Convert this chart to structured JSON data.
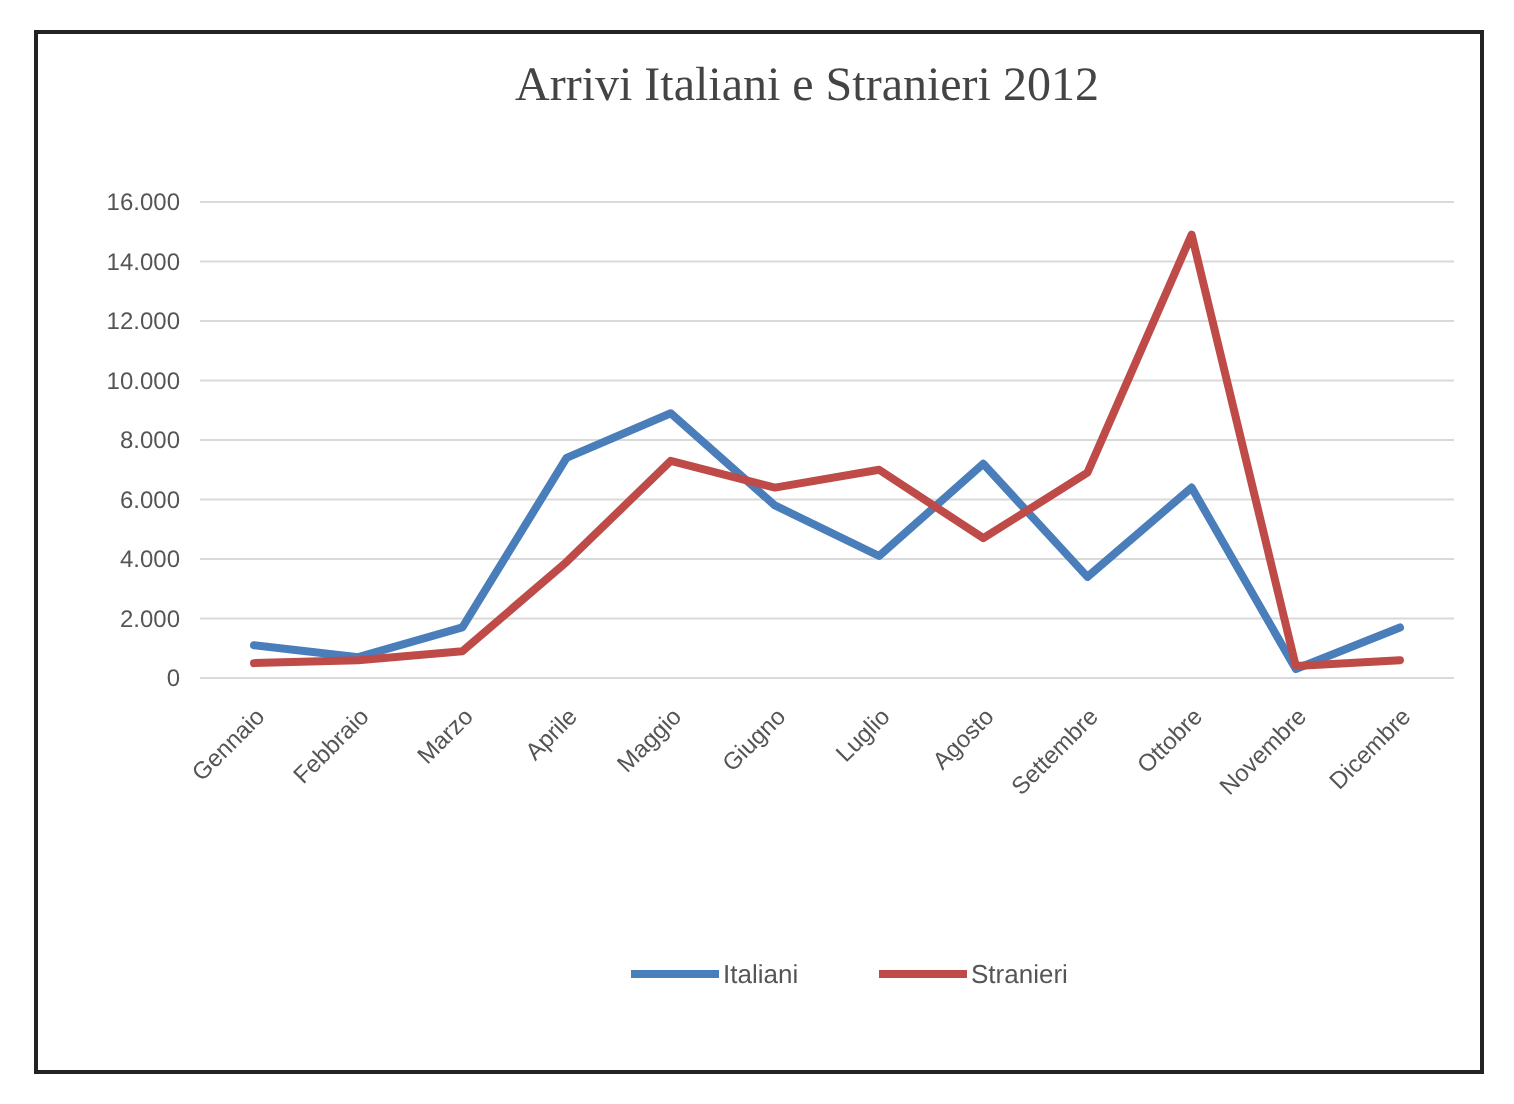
{
  "chart_data": {
    "type": "line",
    "title": "Arrivi Italiani e Stranieri 2012",
    "categories": [
      "Gennaio",
      "Febbraio",
      "Marzo",
      "Aprile",
      "Maggio",
      "Giugno",
      "Luglio",
      "Agosto",
      "Settembre",
      "Ottobre",
      "Novembre",
      "Dicembre"
    ],
    "series": [
      {
        "name": "Italiani",
        "color": "#4a7ebb",
        "values": [
          1100,
          700,
          1700,
          7400,
          8900,
          5800,
          4100,
          7200,
          3400,
          6400,
          300,
          1700
        ]
      },
      {
        "name": "Stranieri",
        "color": "#be4b48",
        "values": [
          500,
          600,
          900,
          3900,
          7300,
          6400,
          7000,
          4700,
          6900,
          14900,
          400,
          600
        ]
      }
    ],
    "ylim": [
      0,
      16000
    ],
    "yticks": [
      {
        "value": 0,
        "label": "0"
      },
      {
        "value": 2000,
        "label": "2.000"
      },
      {
        "value": 4000,
        "label": "4.000"
      },
      {
        "value": 6000,
        "label": "6.000"
      },
      {
        "value": 8000,
        "label": "8.000"
      },
      {
        "value": 10000,
        "label": "10.000"
      },
      {
        "value": 12000,
        "label": "12.000"
      },
      {
        "value": 14000,
        "label": "14.000"
      },
      {
        "value": 16000,
        "label": "16.000"
      }
    ],
    "grid": "y",
    "legend": "bottom",
    "marker": "none",
    "line_style": "solid"
  }
}
